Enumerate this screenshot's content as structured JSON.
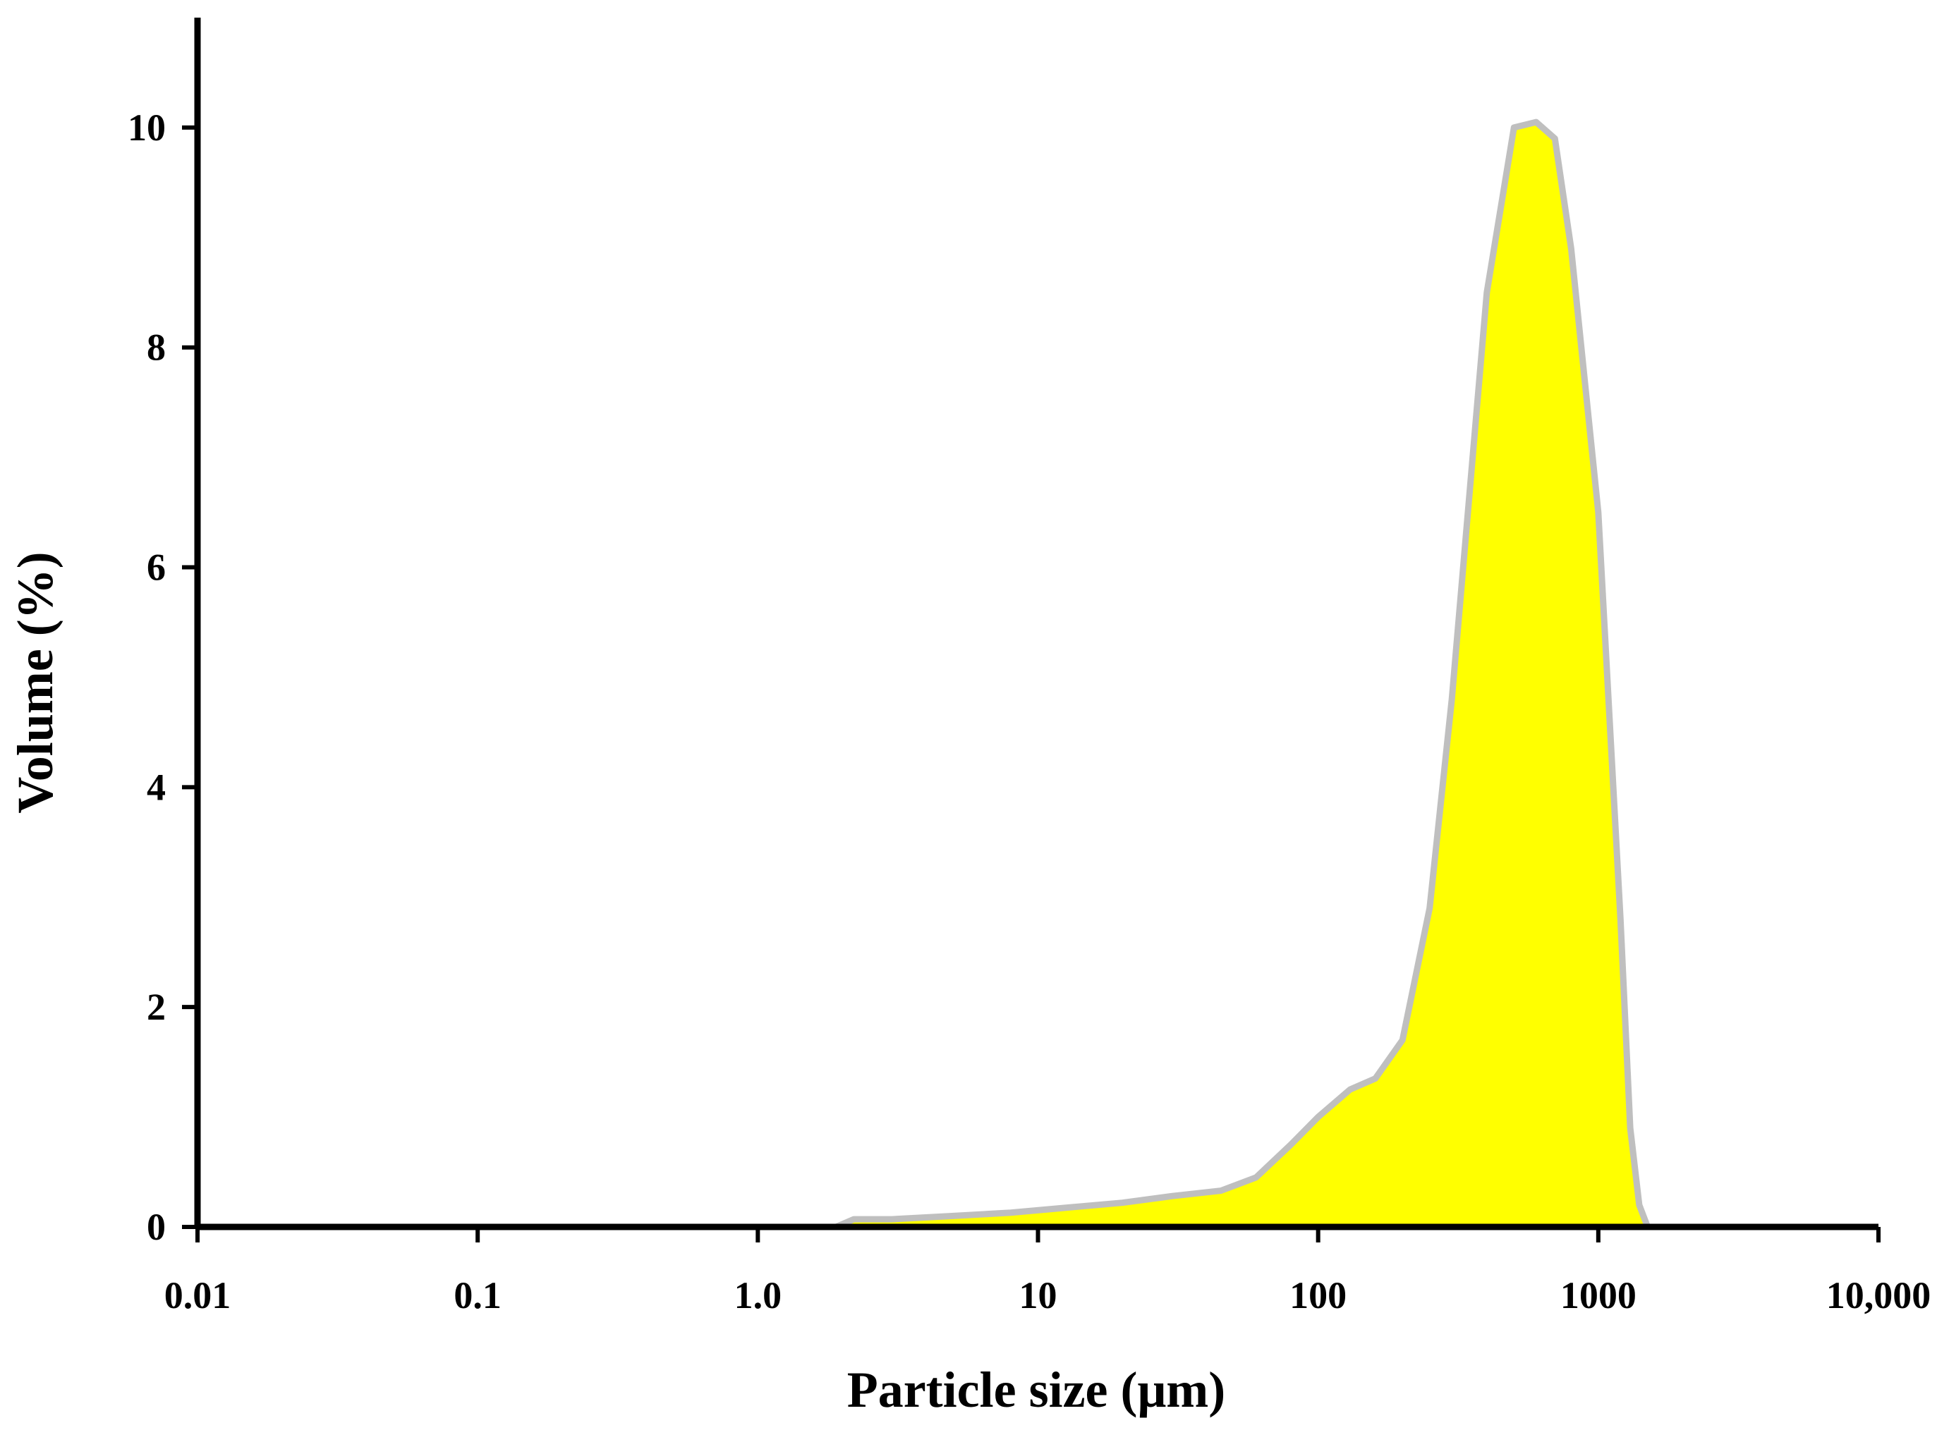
{
  "chart_data": {
    "type": "area",
    "xlabel": "Particle size (μm)",
    "ylabel": "Volume (%)",
    "xscale": "log",
    "xlim": [
      0.01,
      10000
    ],
    "ylim": [
      0,
      11
    ],
    "x_ticks": [
      0.01,
      0.1,
      1,
      10,
      100,
      1000,
      10000
    ],
    "x_tick_labels": [
      "0.01",
      "0.1",
      "1.0",
      "10",
      "100",
      "1000",
      "10,000"
    ],
    "y_ticks": [
      0,
      2,
      4,
      6,
      8,
      10
    ],
    "y_tick_labels": [
      "0",
      "2",
      "4",
      "6",
      "8",
      "10"
    ],
    "grid": false,
    "legend": "none",
    "fill_color": "#ffff00",
    "line_color": "#bfbfbf",
    "axis_color": "#000000",
    "x": [
      0.015,
      0.1,
      0.5,
      1.9,
      2.2,
      3,
      5,
      8,
      12,
      20,
      30,
      45,
      60,
      80,
      100,
      130,
      160,
      200,
      250,
      300,
      400,
      500,
      600,
      700,
      800,
      1000,
      1200,
      1300,
      1400,
      1500,
      3800
    ],
    "y": [
      0,
      0,
      0,
      0,
      0.07,
      0.07,
      0.1,
      0.13,
      0.17,
      0.22,
      0.28,
      0.33,
      0.45,
      0.75,
      1.0,
      1.25,
      1.35,
      1.7,
      2.9,
      4.8,
      8.5,
      10.0,
      10.05,
      9.9,
      8.9,
      6.5,
      2.8,
      0.9,
      0.2,
      0,
      0
    ]
  }
}
